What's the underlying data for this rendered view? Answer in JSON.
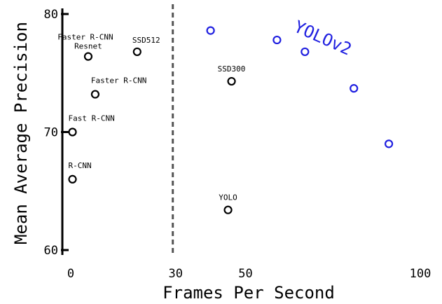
{
  "chart_data": {
    "type": "scatter",
    "title": "",
    "xlabel": "Frames Per Second",
    "ylabel": "Mean Average Precision",
    "xlim": [
      0,
      100
    ],
    "ylim": [
      59.5,
      81.5
    ],
    "x_ticks": [
      0,
      30,
      50,
      100
    ],
    "y_ticks": [
      60,
      70,
      80
    ],
    "reference_line": {
      "x": 30,
      "style": "dashed"
    },
    "grid": false,
    "series": [
      {
        "name": "",
        "color": "#000000",
        "points": [
          {
            "label": "R-CNN",
            "x": 0.5,
            "y": 66.0
          },
          {
            "label": "Fast R-CNN",
            "x": 0.5,
            "y": 70.0
          },
          {
            "label": "Faster R-CNN",
            "x": 7,
            "y": 73.2
          },
          {
            "label": "Faster R-CNN Resnet",
            "x": 5,
            "y": 76.4
          },
          {
            "label": "SSD512",
            "x": 19,
            "y": 76.8
          },
          {
            "label": "SSD300",
            "x": 46,
            "y": 74.3
          },
          {
            "label": "YOLO",
            "x": 45,
            "y": 63.4
          }
        ]
      },
      {
        "name": "YOLOv2",
        "color": "#1f1fe0",
        "points": [
          {
            "x": 40,
            "y": 78.6
          },
          {
            "x": 59,
            "y": 77.8
          },
          {
            "x": 67,
            "y": 76.8
          },
          {
            "x": 81,
            "y": 73.7
          },
          {
            "x": 91,
            "y": 69.0
          }
        ]
      }
    ]
  }
}
